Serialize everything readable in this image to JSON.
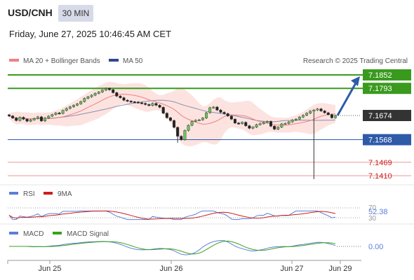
{
  "header": {
    "symbol": "USD/CNH",
    "timeframe": "30 MIN",
    "datetime": "Friday, June 27, 2025 10:46:45 AM CET"
  },
  "legend": {
    "ma20_label": "MA 20 + Bollinger Bands",
    "ma50_label": "MA 50",
    "credit": "Research © 2025 Trading Central",
    "rsi_label": "RSI",
    "rsi_ma_label": "9MA",
    "macd_label": "MACD",
    "macd_signal_label": "MACD Signal"
  },
  "colors": {
    "resistance": "#3a9a1e",
    "support": "#2e5aa8",
    "minor_support": "#e89a9a",
    "current_price": "#333333",
    "ma20": "#f08080",
    "ma50": "#2e4a8c",
    "candle_up": "#6fbf5a",
    "candle_down": "#222222",
    "rsi": "#5b7fd6",
    "rsi_ma": "#cc1f1f",
    "macd": "#5b7fd6",
    "macd_signal": "#3aa01e",
    "forecast_arrow": "#2e5aa8"
  },
  "chart_data": {
    "type": "candlestick",
    "symbol": "USD/CNH",
    "interval": "30 MIN",
    "x_tick_labels": [
      "Jun 25",
      "Jun 26",
      "Jun 27",
      "Jun 29"
    ],
    "price_levels": [
      {
        "price": 7.1852,
        "type": "resistance"
      },
      {
        "price": 7.1793,
        "type": "resistance"
      },
      {
        "price": 7.1674,
        "type": "current"
      },
      {
        "price": 7.1568,
        "type": "support"
      },
      {
        "price": 7.1469,
        "type": "minor_support"
      },
      {
        "price": 7.141,
        "type": "minor_support"
      }
    ],
    "ylim": [
      7.136,
      7.19
    ],
    "close_series": [
      7.1672,
      7.1663,
      7.1652,
      7.1666,
      7.1658,
      7.1649,
      7.1655,
      7.1661,
      7.1668,
      7.165,
      7.1663,
      7.1671,
      7.1678,
      7.1685,
      7.1683,
      7.1696,
      7.1705,
      7.1712,
      7.1719,
      7.1725,
      7.1735,
      7.1749,
      7.1756,
      7.1763,
      7.1771,
      7.1777,
      7.1785,
      7.1793,
      7.1787,
      7.1774,
      7.1759,
      7.1752,
      7.1741,
      7.1737,
      7.1734,
      7.1733,
      7.173,
      7.1727,
      7.1722,
      7.1718,
      7.1727,
      7.1719,
      7.171,
      7.1684,
      7.1664,
      7.1652,
      7.1622,
      7.1583,
      7.1568,
      7.1608,
      7.1631,
      7.1648,
      7.1653,
      7.1655,
      7.1663,
      7.1686,
      7.1708,
      7.1711,
      7.1698,
      7.1688,
      7.1682,
      7.1672,
      7.1658,
      7.1641,
      7.1638,
      7.1644,
      7.1629,
      7.1618,
      7.1623,
      7.1634,
      7.1638,
      7.1644,
      7.1648,
      7.1627,
      7.1614,
      7.1623,
      7.1637,
      7.1639,
      7.1646,
      7.1654,
      7.1658,
      7.1667,
      7.1675,
      7.1684,
      7.1693,
      7.1698,
      7.1703,
      7.1694,
      7.1686,
      7.1678,
      7.1664,
      7.1674
    ],
    "rsi": {
      "last": 52.38,
      "levels": [
        70,
        30
      ]
    },
    "macd": {
      "last": 0.0
    }
  },
  "axis": {
    "rsi_last_label": "52.38",
    "rsi_70": "70",
    "rsi_30": "30",
    "macd_last_label": "0.00"
  }
}
